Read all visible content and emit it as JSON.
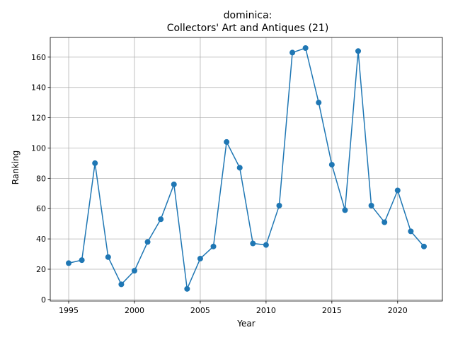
{
  "chart_data": {
    "type": "line",
    "title_line1": "dominica:",
    "title_line2": "Collectors' Art and Antiques (21)",
    "xlabel": "Year",
    "ylabel": "Ranking",
    "xlim": [
      1993.6,
      2023.4
    ],
    "ylim": [
      -1.0,
      173.0
    ],
    "xticks": [
      1995,
      2000,
      2005,
      2010,
      2015,
      2020
    ],
    "yticks": [
      0,
      20,
      40,
      60,
      80,
      100,
      120,
      140,
      160
    ],
    "grid": true,
    "series": [
      {
        "color": "#1f77b4",
        "marker": "circle",
        "x": [
          1995,
          1996,
          1997,
          1998,
          1999,
          2000,
          2001,
          2002,
          2003,
          2004,
          2005,
          2006,
          2007,
          2008,
          2009,
          2010,
          2011,
          2012,
          2013,
          2014,
          2015,
          2016,
          2017,
          2018,
          2019,
          2020,
          2021,
          2022
        ],
        "y": [
          24,
          26,
          90,
          28,
          10,
          19,
          38,
          53,
          76,
          7,
          27,
          35,
          104,
          87,
          37,
          36,
          62,
          163,
          166,
          130,
          89,
          59,
          164,
          62,
          51,
          72,
          45,
          35
        ]
      }
    ]
  }
}
